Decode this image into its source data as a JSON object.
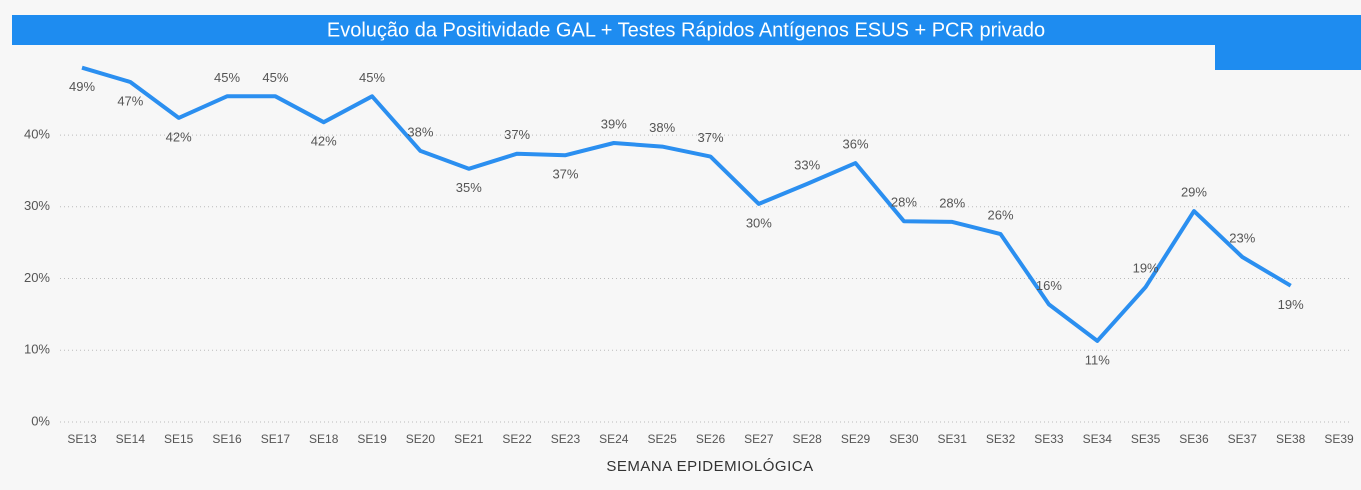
{
  "chart_data": {
    "type": "line",
    "title": "Evolução da Positividade GAL + Testes Rápidos Antígenos ESUS + PCR privado",
    "x_label": "SEMANA EPIDEMIOLÓGICA",
    "categories": [
      "SE13",
      "SE14",
      "SE15",
      "SE16",
      "SE17",
      "SE18",
      "SE19",
      "SE20",
      "SE21",
      "SE22",
      "SE23",
      "SE24",
      "SE25",
      "SE26",
      "SE27",
      "SE28",
      "SE29",
      "SE30",
      "SE31",
      "SE32",
      "SE33",
      "SE34",
      "SE35",
      "SE36",
      "SE37",
      "SE38",
      "SE39"
    ],
    "values": [
      49.4,
      47.4,
      42.4,
      45.4,
      45.4,
      41.8,
      45.4,
      37.8,
      35.3,
      37.4,
      37.2,
      38.9,
      38.4,
      37.0,
      30.4,
      33.2,
      36.1,
      28.0,
      27.9,
      26.2,
      16.4,
      11.3,
      18.8,
      29.4,
      23.0,
      19.0,
      null
    ],
    "value_labels": [
      "49%",
      "47%",
      "42%",
      "45%",
      "45%",
      "42%",
      "45%",
      "38%",
      "35%",
      "37%",
      "37%",
      "39%",
      "38%",
      "37%",
      "30%",
      "33%",
      "36%",
      "28%",
      "28%",
      "26%",
      "16%",
      "11%",
      "19%",
      "29%",
      "23%",
      "19%",
      null
    ],
    "color": "#2b8ff0",
    "ylim": [
      0,
      52
    ],
    "yticks": [
      {
        "value": 0,
        "label": "0%"
      },
      {
        "value": 10,
        "label": "10%"
      },
      {
        "value": 20,
        "label": "20%"
      },
      {
        "value": 30,
        "label": "30%"
      },
      {
        "value": 40,
        "label": "40%"
      }
    ],
    "grid": true
  }
}
